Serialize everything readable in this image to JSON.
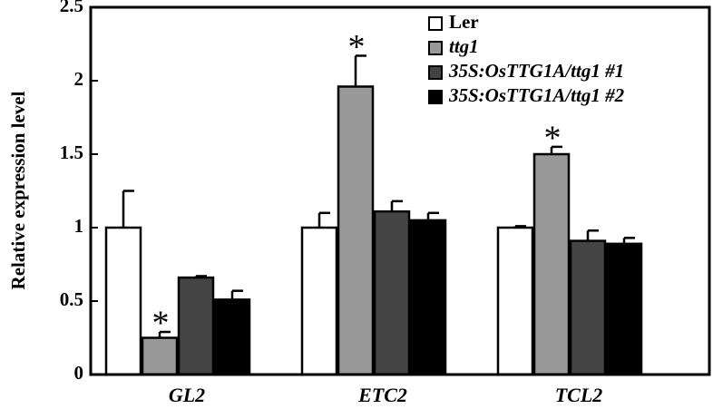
{
  "chart_data": {
    "type": "bar",
    "y_label": "Relative expression level",
    "categories": [
      "GL2",
      "ETC2",
      "TCL2"
    ],
    "series": [
      {
        "name": "Ler",
        "color": "#ffffff",
        "values": [
          1.0,
          1.0,
          1.0
        ],
        "errors": [
          0.25,
          0.1,
          0.01
        ]
      },
      {
        "name": "ttg1",
        "color": "#999999",
        "values": [
          0.25,
          1.96,
          1.5
        ],
        "errors": [
          0.04,
          0.21,
          0.05
        ],
        "annotations": [
          "*",
          "*",
          "*"
        ]
      },
      {
        "name": "35S:OsTTG1A/ttg1 #1",
        "color": "#444444",
        "values": [
          0.66,
          1.11,
          0.91
        ],
        "errors": [
          0.01,
          0.07,
          0.07
        ]
      },
      {
        "name": "35S:OsTTG1A/ttg1 #2",
        "color": "#000000",
        "values": [
          0.51,
          1.05,
          0.89
        ],
        "errors": [
          0.06,
          0.05,
          0.04
        ]
      }
    ],
    "ylim": [
      0,
      2.5
    ],
    "yticks": [
      0,
      0.5,
      1,
      1.5,
      2,
      2.5
    ],
    "legend": "upper right"
  }
}
